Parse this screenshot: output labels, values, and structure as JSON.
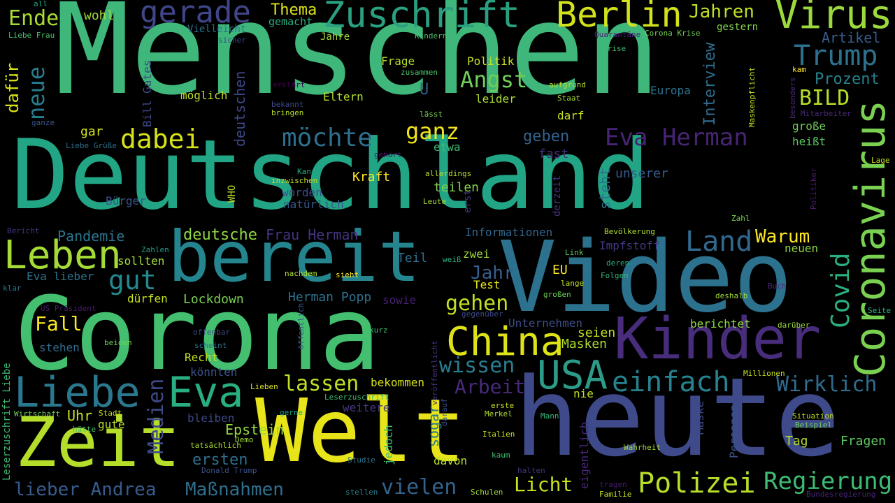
{
  "words": [
    {
      "text": "Menschen",
      "color": "#3fb77a"
    },
    {
      "text": "Deutschland",
      "color": "#22a585"
    },
    {
      "text": "Corona",
      "color": "#44bf70"
    },
    {
      "text": "Video",
      "color": "#2c728e"
    },
    {
      "text": "heute",
      "color": "#3f4a8a"
    },
    {
      "text": "Welt",
      "color": "#e7e419"
    },
    {
      "text": "bereit",
      "color": "#25858e"
    },
    {
      "text": "Zeit",
      "color": "#b5de2b"
    },
    {
      "text": "Kinder",
      "color": "#472d7b"
    },
    {
      "text": "Liebe",
      "color": "#2a788e"
    },
    {
      "text": "Eva",
      "color": "#29af7f"
    },
    {
      "text": "Leben",
      "color": "#a5db36"
    },
    {
      "text": "China",
      "color": "#dde318"
    },
    {
      "text": "USA",
      "color": "#2c9c89"
    },
    {
      "text": "Zuschrift",
      "color": "#2aa081"
    },
    {
      "text": "Berlin",
      "color": "#d2e21b"
    },
    {
      "text": "Virus",
      "color": "#9bd93c"
    },
    {
      "text": "gerade",
      "color": "#404688"
    },
    {
      "text": "Trump",
      "color": "#2c718e"
    },
    {
      "text": "Land",
      "color": "#31688e"
    },
    {
      "text": "einfach",
      "color": "#26828e"
    },
    {
      "text": "Polizei",
      "color": "#b8de29"
    },
    {
      "text": "Regierung",
      "color": "#3dbc74"
    },
    {
      "text": "lassen",
      "color": "#bddf26"
    },
    {
      "text": "wissen",
      "color": "#287d8e"
    },
    {
      "text": "Wirklich",
      "color": "#2f6c8e"
    },
    {
      "text": "gut",
      "color": "#23898e"
    },
    {
      "text": "gehen",
      "color": "#c2df23"
    },
    {
      "text": "vielen",
      "color": "#33638d"
    },
    {
      "text": "möchte",
      "color": "#2d708e"
    },
    {
      "text": "dabei",
      "color": "#d5e21a"
    },
    {
      "text": "ganz",
      "color": "#f1e51d"
    },
    {
      "text": "Angst",
      "color": "#6ece58"
    },
    {
      "text": "BILD",
      "color": "#b5de2b"
    },
    {
      "text": "Prozent",
      "color": "#26828e"
    },
    {
      "text": "Eva Herman",
      "color": "#482475"
    },
    {
      "text": "Jahren",
      "color": "#bddf26"
    },
    {
      "text": "Ende",
      "color": "#a8db34"
    },
    {
      "text": "Thema",
      "color": "#dde318"
    },
    {
      "text": "wohl",
      "color": "#a2da37"
    },
    {
      "text": "Fall",
      "color": "#fde725"
    },
    {
      "text": "Arbeit",
      "color": "#472a7a"
    },
    {
      "text": "Warum",
      "color": "#fde725"
    },
    {
      "text": "Licht",
      "color": "#c8e020"
    },
    {
      "text": "lieber Andrea",
      "color": "#365c8d"
    },
    {
      "text": "Maßnahmen",
      "color": "#2e6f8e"
    },
    {
      "text": "Pandemie",
      "color": "#2a768e"
    },
    {
      "text": "deutsche",
      "color": "#8fd744"
    },
    {
      "text": "Frau Herman",
      "color": "#46337f"
    },
    {
      "text": "Jahr",
      "color": "#355f8d"
    },
    {
      "text": "Lockdown",
      "color": "#7ad151"
    },
    {
      "text": "Herman Popp",
      "color": "#2d718e"
    },
    {
      "text": "ersten",
      "color": "#2d708e"
    },
    {
      "text": "Epstein",
      "color": "#95d840"
    },
    {
      "text": "Uhr",
      "color": "#cae11f"
    },
    {
      "text": "Masken",
      "color": "#addc30"
    },
    {
      "text": "seien",
      "color": "#c5e021"
    },
    {
      "text": "Tag",
      "color": "#b2dd2d"
    },
    {
      "text": "Fragen",
      "color": "#5ec962"
    },
    {
      "text": "Artikel",
      "color": "#365d8d"
    },
    {
      "text": "Interview",
      "color": "#2e6e8e"
    },
    {
      "text": "geben",
      "color": "#33638d"
    },
    {
      "text": "Kraft",
      "color": "#fde725"
    },
    {
      "text": "teilen",
      "color": "#7fd34e"
    },
    {
      "text": "unserer",
      "color": "#38598c"
    },
    {
      "text": "Informationen",
      "color": "#31668e"
    },
    {
      "text": "Impfstoff",
      "color": "#453781"
    },
    {
      "text": "Politik",
      "color": "#cae11f"
    },
    {
      "text": "Frage",
      "color": "#b5de2b"
    },
    {
      "text": "Eltern",
      "color": "#b5de2b"
    },
    {
      "text": "leider",
      "color": "#aadc32"
    },
    {
      "text": "darf",
      "color": "#c8e020"
    },
    {
      "text": "Europa",
      "color": "#2c738e"
    },
    {
      "text": "möglich",
      "color": "#c0df25"
    },
    {
      "text": "gar",
      "color": "#d5e21a"
    },
    {
      "text": "etwa",
      "color": "#3fbc73"
    },
    {
      "text": "fast",
      "color": "#472d7b"
    },
    {
      "text": "Bürger",
      "color": "#3b528b"
    },
    {
      "text": "natürlich",
      "color": "#38588c"
    },
    {
      "text": "worden",
      "color": "#3e4c8a"
    },
    {
      "text": "Teil",
      "color": "#2d708e"
    },
    {
      "text": "zwei",
      "color": "#a0da39"
    },
    {
      "text": "Test",
      "color": "#e5e419"
    },
    {
      "text": "EU",
      "color": "#fde725"
    },
    {
      "text": "sollten",
      "color": "#a5db36"
    },
    {
      "text": "dürfen",
      "color": "#c5e021"
    },
    {
      "text": "Eva lieber",
      "color": "#2c728e"
    },
    {
      "text": "Recht",
      "color": "#c0df25"
    },
    {
      "text": "könnten",
      "color": "#3b528b"
    },
    {
      "text": "bleiben",
      "color": "#3e4989"
    },
    {
      "text": "stehen",
      "color": "#2f6c8e"
    },
    {
      "text": "gute",
      "color": "#b8de29"
    },
    {
      "text": "weitere",
      "color": "#453882"
    },
    {
      "text": "bekommen",
      "color": "#d8e219"
    },
    {
      "text": "sowie",
      "color": "#481f70"
    },
    {
      "text": "Unternehmen",
      "color": "#3d4e8a"
    },
    {
      "text": "berichtet",
      "color": "#90d743"
    },
    {
      "text": "neuen",
      "color": "#8bd646"
    },
    {
      "text": "davon",
      "color": "#b5de2b"
    },
    {
      "text": "nie",
      "color": "#bddf26"
    },
    {
      "text": "sogar",
      "color": "#2a788e"
    },
    {
      "text": "große",
      "color": "#6ece58"
    },
    {
      "text": "heißt",
      "color": "#5ec962"
    },
    {
      "text": "U",
      "color": "#355f8d"
    },
    {
      "text": "gemacht",
      "color": "#2ab07f"
    },
    {
      "text": "Vielleicht",
      "color": "#2c728e"
    },
    {
      "text": "Jahre",
      "color": "#a5db36"
    },
    {
      "text": "gestern",
      "color": "#85d54a"
    },
    {
      "text": "Liebe Frau",
      "color": "#4ac16d"
    },
    {
      "text": "sicher",
      "color": "#3e4989"
    },
    {
      "text": "erklärt",
      "color": "#440154"
    },
    {
      "text": "bekannt",
      "color": "#3e4989"
    },
    {
      "text": "bringen",
      "color": "#b5de2b"
    },
    {
      "text": "Kindern",
      "color": "#4ac16d"
    },
    {
      "text": "zusammen",
      "color": "#4ac16d"
    },
    {
      "text": "aufgrund",
      "color": "#b5de2b"
    },
    {
      "text": "Staat",
      "color": "#a5db36"
    },
    {
      "text": "lässt",
      "color": "#7ad151"
    },
    {
      "text": "Quarantäne",
      "color": "#482475"
    },
    {
      "text": "Corona Krise",
      "color": "#73d056"
    },
    {
      "text": "Krise",
      "color": "#3fbc73"
    },
    {
      "text": "kam",
      "color": "#fde725"
    },
    {
      "text": "Mitarbeiter",
      "color": "#482878"
    },
    {
      "text": "Lage",
      "color": "#c8e020"
    },
    {
      "text": "Liebe Grüße",
      "color": "#2d708e"
    },
    {
      "text": "ganze",
      "color": "#3b528b"
    },
    {
      "text": "gehört",
      "color": "#471365"
    },
    {
      "text": "Kanal",
      "color": "#22a884"
    },
    {
      "text": "inzwischen",
      "color": "#c0df25"
    },
    {
      "text": "allerdings",
      "color": "#b5de2b"
    },
    {
      "text": "Leute",
      "color": "#a5db36"
    },
    {
      "text": "Bericht",
      "color": "#46337f"
    },
    {
      "text": "Zahlen",
      "color": "#1f9e89"
    },
    {
      "text": "klar",
      "color": "#2a788e"
    },
    {
      "text": "nachdem",
      "color": "#addc30"
    },
    {
      "text": "sieht",
      "color": "#fde725"
    },
    {
      "text": "weiß",
      "color": "#2ab07f"
    },
    {
      "text": "Link",
      "color": "#5ec962"
    },
    {
      "text": "lange",
      "color": "#c5e021"
    },
    {
      "text": "großen",
      "color": "#6ece58"
    },
    {
      "text": "deren",
      "color": "#2ab07f"
    },
    {
      "text": "Folgen",
      "color": "#35b779"
    },
    {
      "text": "Bevölkerung",
      "color": "#b5de2b"
    },
    {
      "text": "Zahl",
      "color": "#7ad151"
    },
    {
      "text": "Buch",
      "color": "#482878"
    },
    {
      "text": "deshalb",
      "color": "#a5db36"
    },
    {
      "text": "Seite",
      "color": "#2ab07f"
    },
    {
      "text": "darüber",
      "color": "#a0da39"
    },
    {
      "text": "US Präsident",
      "color": "#481a6c"
    },
    {
      "text": "gegenüber",
      "color": "#3e4989"
    },
    {
      "text": "kurz",
      "color": "#3fbc73"
    },
    {
      "text": "offenbar",
      "color": "#3e4989"
    },
    {
      "text": "scheint",
      "color": "#2c728e"
    },
    {
      "text": "beiden",
      "color": "#73d056"
    },
    {
      "text": "Leserzuschrift",
      "color": "#3fbc73"
    },
    {
      "text": "Lieben",
      "color": "#dde318"
    },
    {
      "text": "Stadt",
      "color": "#c8e020"
    },
    {
      "text": "hätte",
      "color": "#4ac16d"
    },
    {
      "text": "gerne",
      "color": "#1fa188"
    },
    {
      "text": "erste",
      "color": "#c8e020"
    },
    {
      "text": "Merkel",
      "color": "#b5de2b"
    },
    {
      "text": "Italien",
      "color": "#c8e020"
    },
    {
      "text": "kaum",
      "color": "#3fbc73"
    },
    {
      "text": "Mann",
      "color": "#35b779"
    },
    {
      "text": "Situation",
      "color": "#c0df25"
    },
    {
      "text": "Beispiel",
      "color": "#6ece58"
    },
    {
      "text": "Millionen",
      "color": "#c8e020"
    },
    {
      "text": "Wirtschaft",
      "color": "#6ece58"
    },
    {
      "text": "tatsächlich",
      "color": "#a5db36"
    },
    {
      "text": "Demo",
      "color": "#a0da39"
    },
    {
      "text": "Donald Trump",
      "color": "#3b528b"
    },
    {
      "text": "Studie",
      "color": "#2a788e"
    },
    {
      "text": "Wahrheit",
      "color": "#a0da39"
    },
    {
      "text": "halten",
      "color": "#46337f"
    },
    {
      "text": "Schulen",
      "color": "#a5db36"
    },
    {
      "text": "stellen",
      "color": "#26828e"
    },
    {
      "text": "tragen",
      "color": "#481a6c"
    },
    {
      "text": "Familie",
      "color": "#c8e020"
    },
    {
      "text": "Bundesregierung",
      "color": "#482475"
    },
    {
      "text": "all",
      "color": "#22a884"
    },
    {
      "text": "Coronavirus",
      "color": "#7ad151"
    },
    {
      "text": "neue",
      "color": "#287d8e"
    },
    {
      "text": "dafür",
      "color": "#d8e219"
    },
    {
      "text": "Bill Gates",
      "color": "#3e4989"
    },
    {
      "text": "deutschen",
      "color": "#3e4989"
    },
    {
      "text": "Covid",
      "color": "#2ab07f"
    },
    {
      "text": "Medien",
      "color": "#3e4989"
    },
    {
      "text": "Leserzuschrift Liebe",
      "color": "#3fbc73"
    },
    {
      "text": "steht",
      "color": "#2c728e"
    },
    {
      "text": "WHO",
      "color": "#b8de29"
    },
    {
      "text": "erst",
      "color": "#46337f"
    },
    {
      "text": "derzeit",
      "color": "#46337f"
    },
    {
      "text": "besonders",
      "color": "#482878"
    },
    {
      "text": "Maskenpflicht",
      "color": "#c8e020"
    },
    {
      "text": "Politiker",
      "color": "#481a6c"
    },
    {
      "text": "veröffentlicht",
      "color": "#46337f"
    },
    {
      "text": "öffentlich",
      "color": "#3b528b"
    },
    {
      "text": "jedoch",
      "color": "#3fbc73"
    },
    {
      "text": "darauf",
      "color": "#3b528b"
    },
    {
      "text": "eigentlich",
      "color": "#482878"
    },
    {
      "text": "Maske",
      "color": "#3e4989"
    },
    {
      "text": "Personen",
      "color": "#3b528b"
    }
  ]
}
